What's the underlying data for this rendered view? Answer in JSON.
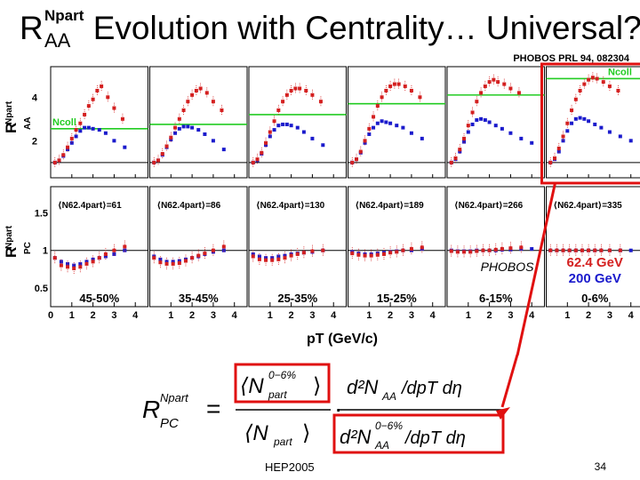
{
  "slide": {
    "title_prefix": "R",
    "title_sup": "Npart",
    "title_sub": "AA",
    "title_main": "Evolution with Centrality… Universal?",
    "citation": "PHOBOS PRL 94, 082304",
    "footer_left": "HEP2005",
    "page_number": "34"
  },
  "colors": {
    "au200": "#1a1acc",
    "au62": "#d42020",
    "ncoll_line": "#22cc22",
    "highlight": "#e01010"
  },
  "chart_data": {
    "type": "scatter",
    "title": "",
    "xlabel": "pT (GeV/c)",
    "x_ticks": [
      "0",
      "1",
      "2",
      "3",
      "4"
    ],
    "top_ylabel": "R_AA^Npart",
    "top_yticks": [
      "2",
      "4"
    ],
    "top_ylim": [
      0.3,
      5.4
    ],
    "bottom_ylabel": "R_PC^Npart",
    "bottom_yticks": [
      "0.5",
      "1",
      "1.5"
    ],
    "bottom_ylim": [
      0.25,
      1.85
    ],
    "xlim": [
      0,
      4.6
    ],
    "ncoll_label": "Ncoll",
    "experiment_label": "PHOBOS",
    "legend": [
      {
        "name": "62.4 GeV",
        "color": "#d42020"
      },
      {
        "name": "200 GeV",
        "color": "#1a1acc"
      }
    ],
    "highlight_panel": 5,
    "panels": [
      {
        "centrality": "45-50%",
        "npart_label": "⟨N62.4part⟩=61",
        "ncoll": 2.55,
        "series": [
          {
            "name": "200 GeV",
            "x": [
              0.2,
              0.4,
              0.6,
              0.8,
              1.0,
              1.2,
              1.4,
              1.6,
              1.8,
              2.0,
              2.3,
              2.6,
              3.0,
              3.5
            ],
            "y": [
              1.0,
              1.1,
              1.3,
              1.6,
              1.9,
              2.2,
              2.45,
              2.6,
              2.6,
              2.55,
              2.5,
              2.35,
              2.0,
              1.7
            ]
          },
          {
            "name": "62.4 GeV",
            "x": [
              0.2,
              0.4,
              0.6,
              0.8,
              1.0,
              1.2,
              1.4,
              1.6,
              1.8,
              2.0,
              2.2,
              2.4,
              2.7,
              3.0,
              3.4
            ],
            "y": [
              1.0,
              1.1,
              1.35,
              1.7,
              2.1,
              2.5,
              2.8,
              3.2,
              3.6,
              3.9,
              4.3,
              4.5,
              4.0,
              3.5,
              3.0
            ]
          }
        ],
        "pc_series": [
          {
            "name": "200 GeV",
            "x": [
              0.2,
              0.5,
              0.8,
              1.1,
              1.4,
              1.7,
              2.0,
              2.3,
              2.6,
              3.0,
              3.5
            ],
            "y": [
              0.9,
              0.85,
              0.82,
              0.8,
              0.82,
              0.85,
              0.88,
              0.9,
              0.92,
              0.95,
              1.0
            ]
          },
          {
            "name": "62.4 GeV",
            "x": [
              0.2,
              0.5,
              0.8,
              1.1,
              1.4,
              1.7,
              2.0,
              2.3,
              2.6,
              3.0,
              3.5
            ],
            "y": [
              0.9,
              0.8,
              0.78,
              0.76,
              0.78,
              0.82,
              0.85,
              0.9,
              0.95,
              1.0,
              1.05
            ]
          }
        ]
      },
      {
        "centrality": "35-45%",
        "npart_label": "⟨N62.4part⟩=86",
        "ncoll": 2.75,
        "series": [
          {
            "name": "200 GeV",
            "x": [
              0.2,
              0.4,
              0.6,
              0.8,
              1.0,
              1.2,
              1.4,
              1.6,
              1.8,
              2.0,
              2.3,
              2.6,
              3.0,
              3.5
            ],
            "y": [
              1.0,
              1.1,
              1.35,
              1.7,
              2.05,
              2.35,
              2.55,
              2.65,
              2.65,
              2.6,
              2.5,
              2.3,
              2.0,
              1.6
            ]
          },
          {
            "name": "62.4 GeV",
            "x": [
              0.2,
              0.4,
              0.6,
              0.8,
              1.0,
              1.2,
              1.4,
              1.6,
              1.8,
              2.0,
              2.2,
              2.4,
              2.7,
              3.0,
              3.4
            ],
            "y": [
              1.0,
              1.1,
              1.4,
              1.75,
              2.15,
              2.6,
              3.0,
              3.4,
              3.8,
              4.1,
              4.3,
              4.4,
              4.2,
              3.8,
              3.4
            ]
          }
        ],
        "pc_series": [
          {
            "name": "200 GeV",
            "x": [
              0.2,
              0.5,
              0.8,
              1.1,
              1.4,
              1.7,
              2.0,
              2.3,
              2.6,
              3.0,
              3.5
            ],
            "y": [
              0.92,
              0.88,
              0.85,
              0.85,
              0.86,
              0.88,
              0.9,
              0.92,
              0.95,
              0.98,
              1.0
            ]
          },
          {
            "name": "62.4 GeV",
            "x": [
              0.2,
              0.5,
              0.8,
              1.1,
              1.4,
              1.7,
              2.0,
              2.3,
              2.6,
              3.0,
              3.5
            ],
            "y": [
              0.9,
              0.84,
              0.82,
              0.82,
              0.83,
              0.86,
              0.9,
              0.93,
              0.96,
              1.0,
              1.05
            ]
          }
        ]
      },
      {
        "centrality": "25-35%",
        "npart_label": "⟨N62.4part⟩=130",
        "ncoll": 3.2,
        "series": [
          {
            "name": "200 GeV",
            "x": [
              0.2,
              0.4,
              0.6,
              0.8,
              1.0,
              1.2,
              1.4,
              1.6,
              1.8,
              2.0,
              2.3,
              2.6,
              3.0,
              3.5
            ],
            "y": [
              1.0,
              1.1,
              1.4,
              1.8,
              2.2,
              2.5,
              2.7,
              2.75,
              2.75,
              2.7,
              2.6,
              2.4,
              2.1,
              1.8
            ]
          },
          {
            "name": "62.4 GeV",
            "x": [
              0.2,
              0.4,
              0.6,
              0.8,
              1.0,
              1.2,
              1.4,
              1.6,
              1.8,
              2.0,
              2.2,
              2.4,
              2.7,
              3.0,
              3.4
            ],
            "y": [
              1.0,
              1.15,
              1.45,
              1.9,
              2.4,
              2.9,
              3.4,
              3.8,
              4.1,
              4.3,
              4.4,
              4.4,
              4.3,
              4.1,
              3.8
            ]
          }
        ],
        "pc_series": [
          {
            "name": "200 GeV",
            "x": [
              0.2,
              0.5,
              0.8,
              1.1,
              1.4,
              1.7,
              2.0,
              2.3,
              2.6,
              3.0,
              3.5
            ],
            "y": [
              0.95,
              0.92,
              0.9,
              0.9,
              0.92,
              0.93,
              0.95,
              0.96,
              0.97,
              0.98,
              1.0
            ]
          },
          {
            "name": "62.4 GeV",
            "x": [
              0.2,
              0.5,
              0.8,
              1.1,
              1.4,
              1.7,
              2.0,
              2.3,
              2.6,
              3.0,
              3.5
            ],
            "y": [
              0.92,
              0.88,
              0.87,
              0.87,
              0.88,
              0.9,
              0.93,
              0.95,
              0.97,
              0.99,
              1.0
            ]
          }
        ]
      },
      {
        "centrality": "15-25%",
        "npart_label": "⟨N62.4part⟩=189",
        "ncoll": 3.7,
        "series": [
          {
            "name": "200 GeV",
            "x": [
              0.2,
              0.4,
              0.6,
              0.8,
              1.0,
              1.2,
              1.4,
              1.6,
              1.8,
              2.0,
              2.3,
              2.6,
              3.0,
              3.5
            ],
            "y": [
              1.0,
              1.15,
              1.45,
              1.9,
              2.3,
              2.6,
              2.8,
              2.9,
              2.85,
              2.8,
              2.7,
              2.6,
              2.35,
              2.1
            ]
          },
          {
            "name": "62.4 GeV",
            "x": [
              0.2,
              0.4,
              0.6,
              0.8,
              1.0,
              1.2,
              1.4,
              1.6,
              1.8,
              2.0,
              2.2,
              2.4,
              2.7,
              3.0,
              3.4
            ],
            "y": [
              1.0,
              1.15,
              1.5,
              2.0,
              2.55,
              3.1,
              3.6,
              4.0,
              4.3,
              4.5,
              4.6,
              4.6,
              4.5,
              4.3,
              4.0
            ]
          }
        ],
        "pc_series": [
          {
            "name": "200 GeV",
            "x": [
              0.2,
              0.5,
              0.8,
              1.1,
              1.4,
              1.7,
              2.0,
              2.3,
              2.6,
              3.0,
              3.5
            ],
            "y": [
              0.98,
              0.96,
              0.95,
              0.95,
              0.96,
              0.97,
              0.98,
              0.99,
              1.0,
              1.0,
              1.02
            ]
          },
          {
            "name": "62.4 GeV",
            "x": [
              0.2,
              0.5,
              0.8,
              1.1,
              1.4,
              1.7,
              2.0,
              2.3,
              2.6,
              3.0,
              3.5
            ],
            "y": [
              0.96,
              0.94,
              0.93,
              0.93,
              0.94,
              0.95,
              0.97,
              0.98,
              1.0,
              1.02,
              1.04
            ]
          }
        ]
      },
      {
        "centrality": "6-15%",
        "npart_label": "⟨N62.4part⟩=266",
        "ncoll": 4.1,
        "series": [
          {
            "name": "200 GeV",
            "x": [
              0.2,
              0.4,
              0.6,
              0.8,
              1.0,
              1.2,
              1.4,
              1.6,
              1.8,
              2.0,
              2.3,
              2.6,
              3.0,
              3.5,
              4.0
            ],
            "y": [
              1.0,
              1.15,
              1.5,
              1.95,
              2.4,
              2.75,
              2.95,
              3.0,
              2.95,
              2.85,
              2.7,
              2.55,
              2.35,
              2.1,
              1.9
            ]
          },
          {
            "name": "62.4 GeV",
            "x": [
              0.2,
              0.4,
              0.6,
              0.8,
              1.0,
              1.2,
              1.4,
              1.6,
              1.8,
              2.0,
              2.2,
              2.4,
              2.7,
              3.0,
              3.4
            ],
            "y": [
              1.0,
              1.2,
              1.6,
              2.1,
              2.7,
              3.3,
              3.8,
              4.2,
              4.5,
              4.7,
              4.8,
              4.7,
              4.6,
              4.4,
              4.2
            ]
          }
        ],
        "pc_series": [
          {
            "name": "200 GeV",
            "x": [
              0.2,
              0.5,
              0.8,
              1.1,
              1.4,
              1.7,
              2.0,
              2.3,
              2.6,
              3.0,
              3.5,
              4.0
            ],
            "y": [
              1.0,
              0.99,
              0.99,
              0.99,
              1.0,
              1.0,
              1.0,
              1.0,
              1.01,
              1.01,
              1.02,
              1.02
            ]
          },
          {
            "name": "62.4 GeV",
            "x": [
              0.2,
              0.5,
              0.8,
              1.1,
              1.4,
              1.7,
              2.0,
              2.3,
              2.6,
              3.0,
              3.5
            ],
            "y": [
              0.99,
              0.98,
              0.98,
              0.98,
              0.99,
              1.0,
              1.0,
              1.01,
              1.02,
              1.03,
              1.04
            ]
          }
        ]
      },
      {
        "centrality": "0-6%",
        "npart_label": "⟨N62.4part⟩=335",
        "ncoll": 4.85,
        "series": [
          {
            "name": "200 GeV",
            "x": [
              0.2,
              0.4,
              0.6,
              0.8,
              1.0,
              1.2,
              1.4,
              1.6,
              1.8,
              2.0,
              2.3,
              2.6,
              3.0,
              3.5,
              4.0
            ],
            "y": [
              1.0,
              1.15,
              1.5,
              2.0,
              2.45,
              2.8,
              3.0,
              3.05,
              3.0,
              2.9,
              2.75,
              2.6,
              2.4,
              2.2,
              2.0
            ]
          },
          {
            "name": "62.4 GeV",
            "x": [
              0.2,
              0.4,
              0.6,
              0.8,
              1.0,
              1.2,
              1.4,
              1.6,
              1.8,
              2.0,
              2.2,
              2.4,
              2.7,
              3.0,
              3.4
            ],
            "y": [
              1.0,
              1.2,
              1.65,
              2.2,
              2.8,
              3.4,
              3.9,
              4.3,
              4.6,
              4.8,
              4.9,
              4.85,
              4.7,
              4.5,
              4.3
            ]
          }
        ],
        "pc_series": [
          {
            "name": "200 GeV",
            "x": [
              0.2,
              0.5,
              0.8,
              1.1,
              1.4,
              1.7,
              2.0,
              2.3,
              2.6,
              3.0,
              3.5,
              4.0
            ],
            "y": [
              1.0,
              1.0,
              1.0,
              1.0,
              1.0,
              1.0,
              1.0,
              1.0,
              1.0,
              1.0,
              1.0,
              1.0
            ]
          },
          {
            "name": "62.4 GeV",
            "x": [
              0.2,
              0.5,
              0.8,
              1.1,
              1.4,
              1.7,
              2.0,
              2.3,
              2.6,
              3.0,
              3.5
            ],
            "y": [
              1.0,
              1.0,
              1.0,
              1.0,
              1.0,
              1.0,
              1.0,
              1.0,
              1.0,
              1.0,
              1.0
            ]
          }
        ]
      }
    ]
  },
  "formula": {
    "lhs_R": "R",
    "lhs_sup": "Npart",
    "lhs_sub": "PC",
    "equals": "=",
    "num_left_N": "⟨N",
    "num_left_sup": "0−6%",
    "num_left_sub": "part",
    "num_left_close": "⟩",
    "den_left": "⟨N",
    "den_left_sub": "part",
    "den_left_close": "⟩",
    "num_right": "d²N",
    "num_right_sub": "AA",
    "num_right_tail": "/dpT dη",
    "den_right": "d²N",
    "den_right_sup": "0−6%",
    "den_right_sub": "AA",
    "den_right_tail": "/dpT dη"
  }
}
